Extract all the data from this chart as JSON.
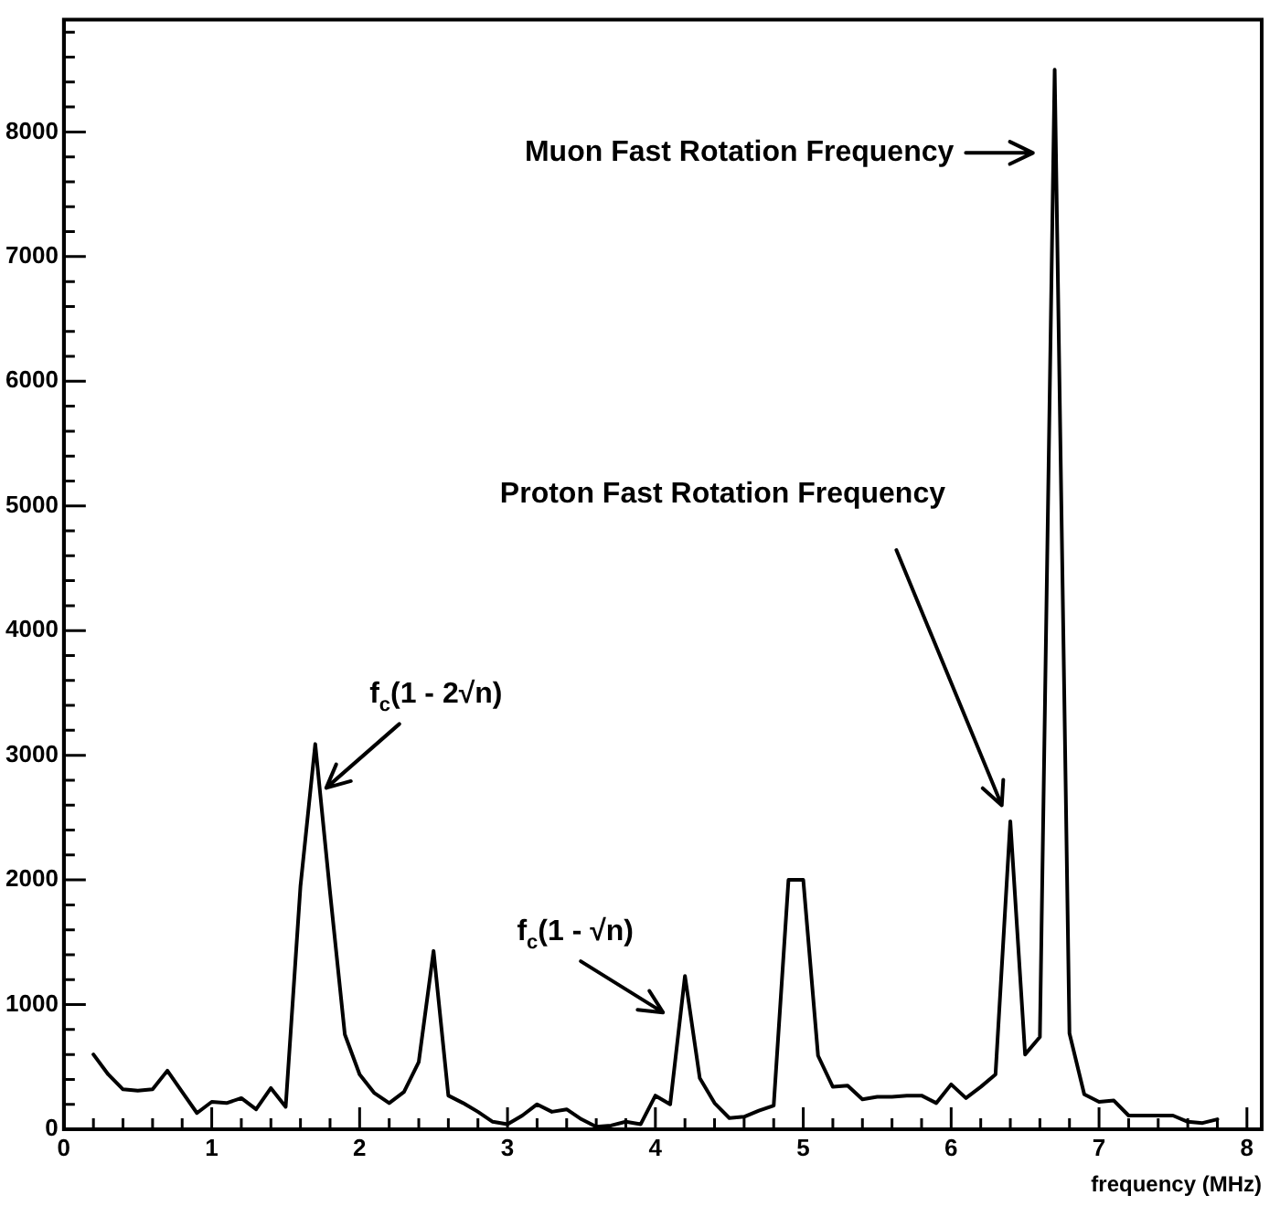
{
  "chart_data": {
    "type": "line",
    "xlabel": "frequency (MHz)",
    "x": [
      0.2,
      0.3,
      0.4,
      0.5,
      0.6,
      0.7,
      0.8,
      0.9,
      1.0,
      1.1,
      1.2,
      1.3,
      1.4,
      1.5,
      1.6,
      1.7,
      1.8,
      1.9,
      2.0,
      2.1,
      2.2,
      2.3,
      2.4,
      2.5,
      2.6,
      2.7,
      2.8,
      2.9,
      3.0,
      3.1,
      3.2,
      3.3,
      3.4,
      3.5,
      3.6,
      3.7,
      3.8,
      3.9,
      4.0,
      4.1,
      4.2,
      4.3,
      4.4,
      4.5,
      4.6,
      4.7,
      4.8,
      4.9,
      5.0,
      5.1,
      5.2,
      5.3,
      5.4,
      5.5,
      5.6,
      5.7,
      5.8,
      5.9,
      6.0,
      6.1,
      6.2,
      6.3,
      6.4,
      6.5,
      6.6,
      6.7,
      6.8,
      6.9,
      7.0,
      7.1,
      7.2,
      7.3,
      7.4,
      7.5,
      7.6,
      7.7,
      7.8
    ],
    "series": [
      {
        "color": "#000000",
        "values": [
          600,
          440,
          320,
          310,
          320,
          470,
          300,
          130,
          220,
          210,
          250,
          160,
          330,
          180,
          1950,
          3090,
          1900,
          760,
          440,
          290,
          210,
          300,
          540,
          1430,
          270,
          210,
          140,
          60,
          40,
          110,
          200,
          140,
          160,
          80,
          20,
          30,
          60,
          40,
          270,
          200,
          1230,
          410,
          210,
          90,
          100,
          150,
          190,
          2000,
          2000,
          590,
          340,
          350,
          240,
          260,
          260,
          270,
          270,
          210,
          360,
          250,
          340,
          440,
          2470,
          600,
          740,
          8500,
          770,
          280,
          220,
          230,
          110,
          110,
          110,
          110,
          60,
          50,
          80
        ]
      }
    ],
    "xlim": [
      0,
      8.1
    ],
    "ylim": [
      0,
      8900
    ],
    "xticks": [
      0,
      {
        "value": 0.2,
        "label": null
      },
      {
        "value": 0.4,
        "label": null
      },
      {
        "value": 0.6,
        "label": null
      },
      {
        "value": 0.8,
        "label": null
      },
      1,
      {
        "value": 1.2,
        "label": null
      },
      {
        "value": 1.4,
        "label": null
      },
      {
        "value": 1.6,
        "label": null
      },
      {
        "value": 1.8,
        "label": null
      },
      2,
      {
        "value": 2.2,
        "label": null
      },
      {
        "value": 2.4,
        "label": null
      },
      {
        "value": 2.6,
        "label": null
      },
      {
        "value": 2.8,
        "label": null
      },
      3,
      {
        "value": 3.2,
        "label": null
      },
      {
        "value": 3.4,
        "label": null
      },
      {
        "value": 3.6,
        "label": null
      },
      {
        "value": 3.8,
        "label": null
      },
      4,
      {
        "value": 4.2,
        "label": null
      },
      {
        "value": 4.4,
        "label": null
      },
      {
        "value": 4.6,
        "label": null
      },
      {
        "value": 4.8,
        "label": null
      },
      5,
      {
        "value": 5.2,
        "label": null
      },
      {
        "value": 5.4,
        "label": null
      },
      {
        "value": 5.6,
        "label": null
      },
      {
        "value": 5.8,
        "label": null
      },
      6,
      {
        "value": 6.2,
        "label": null
      },
      {
        "value": 6.4,
        "label": null
      },
      {
        "value": 6.6,
        "label": null
      },
      {
        "value": 6.8,
        "label": null
      },
      7,
      {
        "value": 7.2,
        "label": null
      },
      {
        "value": 7.4,
        "label": null
      },
      {
        "value": 7.6,
        "label": null
      },
      {
        "value": 7.8,
        "label": null
      },
      8
    ],
    "yticks": [
      0,
      {
        "value": 200,
        "label": null
      },
      {
        "value": 400,
        "label": null
      },
      {
        "value": 600,
        "label": null
      },
      {
        "value": 800,
        "label": null
      },
      1000,
      {
        "value": 1200,
        "label": null
      },
      {
        "value": 1400,
        "label": null
      },
      {
        "value": 1600,
        "label": null
      },
      {
        "value": 1800,
        "label": null
      },
      2000,
      {
        "value": 2200,
        "label": null
      },
      {
        "value": 2400,
        "label": null
      },
      {
        "value": 2600,
        "label": null
      },
      {
        "value": 2800,
        "label": null
      },
      3000,
      {
        "value": 3200,
        "label": null
      },
      {
        "value": 3400,
        "label": null
      },
      {
        "value": 3600,
        "label": null
      },
      {
        "value": 3800,
        "label": null
      },
      4000,
      {
        "value": 4200,
        "label": null
      },
      {
        "value": 4400,
        "label": null
      },
      {
        "value": 4600,
        "label": null
      },
      {
        "value": 4800,
        "label": null
      },
      5000,
      {
        "value": 5200,
        "label": null
      },
      {
        "value": 5400,
        "label": null
      },
      {
        "value": 5600,
        "label": null
      },
      {
        "value": 5800,
        "label": null
      },
      6000,
      {
        "value": 6200,
        "label": null
      },
      {
        "value": 6400,
        "label": null
      },
      {
        "value": 6600,
        "label": null
      },
      {
        "value": 6800,
        "label": null
      },
      7000,
      {
        "value": 7200,
        "label": null
      },
      {
        "value": 7400,
        "label": null
      },
      {
        "value": 7600,
        "label": null
      },
      {
        "value": 7800,
        "label": null
      },
      8000,
      {
        "value": 8200,
        "label": null
      },
      {
        "value": 8400,
        "label": null
      },
      {
        "value": 8600,
        "label": null
      },
      {
        "value": 8800,
        "label": null
      }
    ],
    "grid": false,
    "legend": false,
    "marker": "none",
    "line_style": "solid",
    "annotations": [
      "Muon Fast Rotation Frequency",
      "Proton Fast Rotation Frequency",
      {
        "text": "f$_{c}$(1 - 2√n)",
        "x": 1.7,
        "y": 3090
      },
      {
        "text": "f$_{c}$(1 - √n)",
        "x": 4.2,
        "y": 1230
      }
    ]
  }
}
